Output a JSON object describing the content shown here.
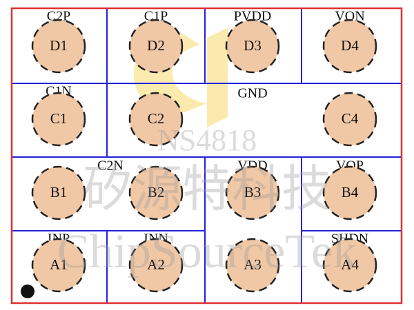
{
  "regions": [
    {
      "label": "C2P"
    },
    {
      "label": "C1P"
    },
    {
      "label": "PVDD"
    },
    {
      "label": "VON"
    },
    {
      "label": "C1N"
    },
    {
      "label": "GND"
    },
    {
      "label": "C2N"
    },
    {
      "label": "VDD"
    },
    {
      "label": "VOP"
    },
    {
      "label": "INP"
    },
    {
      "label": "INN"
    },
    {
      "label": "SHDN"
    }
  ],
  "balls": [
    {
      "id": "D1"
    },
    {
      "id": "D2"
    },
    {
      "id": "D3"
    },
    {
      "id": "D4"
    },
    {
      "id": "C1"
    },
    {
      "id": "C2"
    },
    {
      "id": "C4"
    },
    {
      "id": "B1"
    },
    {
      "id": "B2"
    },
    {
      "id": "B3"
    },
    {
      "id": "B4"
    },
    {
      "id": "A1"
    },
    {
      "id": "A2"
    },
    {
      "id": "A3"
    },
    {
      "id": "A4"
    }
  ],
  "watermarks": [
    "NS4818",
    "矽源特科技",
    "ChipSourceTek"
  ]
}
